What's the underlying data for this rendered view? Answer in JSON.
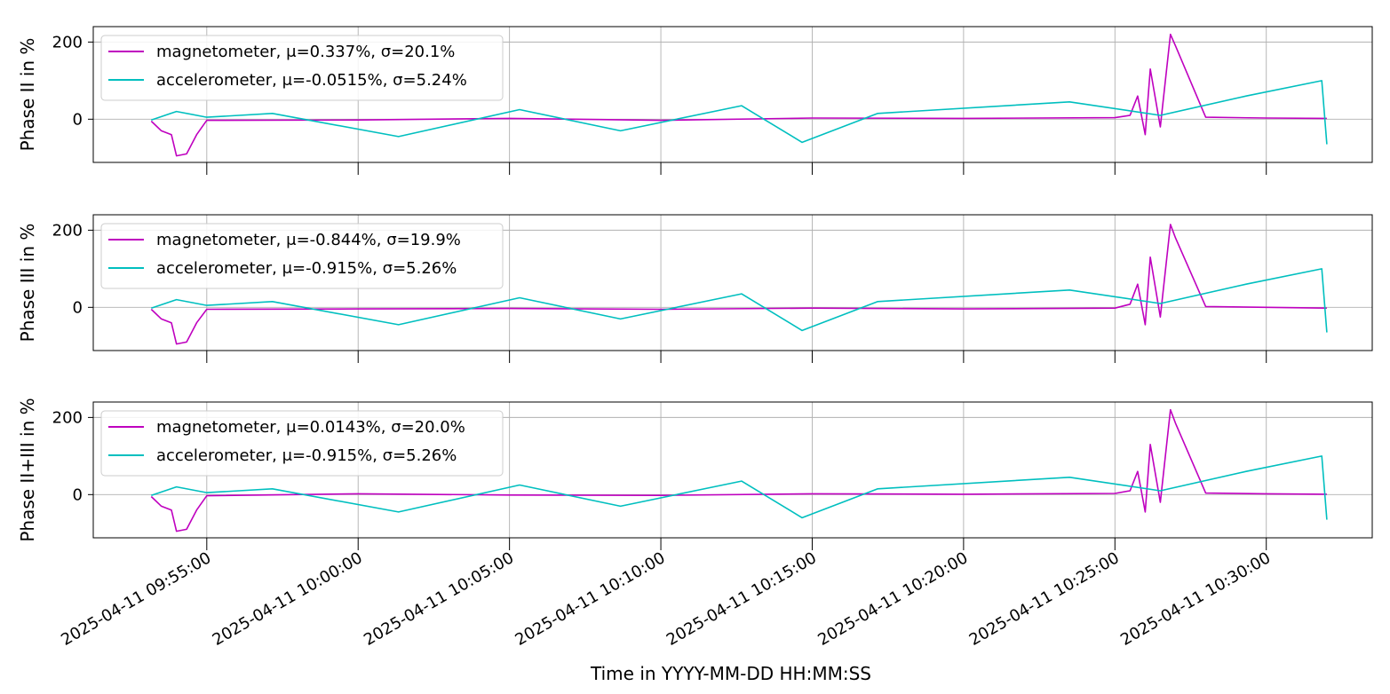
{
  "chart_data": {
    "type": "line",
    "xlabel": "Time in YYYY-MM-DD HH:MM:SS",
    "x_range": [
      "2025-04-11 09:51:15",
      "2025-04-11 10:33:30"
    ],
    "x_ticks": [
      "2025-04-11 09:55:00",
      "2025-04-11 10:00:00",
      "2025-04-11 10:05:00",
      "2025-04-11 10:10:00",
      "2025-04-11 10:15:00",
      "2025-04-11 10:20:00",
      "2025-04-11 10:25:00",
      "2025-04-11 10:30:00"
    ],
    "y_ticks": [
      0,
      200
    ],
    "grid": true,
    "legend_placement": "upper-left",
    "colors": {
      "magnetometer": "#bf00bf",
      "accelerometer": "#00bfbf"
    },
    "panels": [
      {
        "ylabel": "Phase II in %",
        "ylim": [
          -112,
          240
        ],
        "series": [
          {
            "name": "magnetometer",
            "legend": "magnetometer, μ=0.337%, σ=20.1%",
            "x": [
              "2025-04-11 09:53:10",
              "2025-04-11 09:53:30",
              "2025-04-11 09:53:50",
              "2025-04-11 09:54:00",
              "2025-04-11 09:54:20",
              "2025-04-11 09:54:40",
              "2025-04-11 09:55:00",
              "2025-04-11 10:00:00",
              "2025-04-11 10:05:00",
              "2025-04-11 10:10:00",
              "2025-04-11 10:15:00",
              "2025-04-11 10:20:00",
              "2025-04-11 10:25:00",
              "2025-04-11 10:25:30",
              "2025-04-11 10:25:45",
              "2025-04-11 10:26:00",
              "2025-04-11 10:26:10",
              "2025-04-11 10:26:30",
              "2025-04-11 10:26:50",
              "2025-04-11 10:27:00",
              "2025-04-11 10:28:00",
              "2025-04-11 10:30:00",
              "2025-04-11 10:32:00"
            ],
            "y": [
              -5,
              -30,
              -40,
              -95,
              -90,
              -40,
              -3,
              -2,
              2,
              -3,
              3,
              2,
              4,
              10,
              60,
              -40,
              130,
              -20,
              220,
              190,
              5,
              3,
              2
            ]
          },
          {
            "name": "accelerometer",
            "legend": "accelerometer, μ=-0.0515%, σ=5.24%",
            "x": [
              "2025-04-11 09:53:10",
              "2025-04-11 09:54:00",
              "2025-04-11 09:55:00",
              "2025-04-11 09:57:10",
              "2025-04-11 10:01:20",
              "2025-04-11 10:05:20",
              "2025-04-11 10:08:40",
              "2025-04-11 10:12:40",
              "2025-04-11 10:14:40",
              "2025-04-11 10:17:10",
              "2025-04-11 10:23:30",
              "2025-04-11 10:26:30",
              "2025-04-11 10:29:20",
              "2025-04-11 10:31:50",
              "2025-04-11 10:32:00"
            ],
            "y": [
              -2,
              20,
              5,
              15,
              -45,
              25,
              -30,
              35,
              -60,
              15,
              45,
              10,
              60,
              100,
              -65
            ]
          }
        ]
      },
      {
        "ylabel": "Phase III in %",
        "ylim": [
          -112,
          240
        ],
        "series": [
          {
            "name": "magnetometer",
            "legend": "magnetometer, μ=-0.844%, σ=19.9%",
            "x": [
              "2025-04-11 09:53:10",
              "2025-04-11 09:53:30",
              "2025-04-11 09:53:50",
              "2025-04-11 09:54:00",
              "2025-04-11 09:54:20",
              "2025-04-11 09:54:40",
              "2025-04-11 09:55:00",
              "2025-04-11 10:00:00",
              "2025-04-11 10:05:00",
              "2025-04-11 10:10:00",
              "2025-04-11 10:15:00",
              "2025-04-11 10:20:00",
              "2025-04-11 10:25:00",
              "2025-04-11 10:25:30",
              "2025-04-11 10:25:45",
              "2025-04-11 10:26:00",
              "2025-04-11 10:26:10",
              "2025-04-11 10:26:30",
              "2025-04-11 10:26:50",
              "2025-04-11 10:27:00",
              "2025-04-11 10:28:00",
              "2025-04-11 10:30:00",
              "2025-04-11 10:32:00"
            ],
            "y": [
              -5,
              -30,
              -40,
              -95,
              -90,
              -40,
              -5,
              -4,
              -3,
              -5,
              -2,
              -4,
              -2,
              8,
              60,
              -45,
              130,
              -25,
              215,
              180,
              2,
              0,
              -2
            ]
          },
          {
            "name": "accelerometer",
            "legend": "accelerometer, μ=-0.915%, σ=5.26%",
            "x": [
              "2025-04-11 09:53:10",
              "2025-04-11 09:54:00",
              "2025-04-11 09:55:00",
              "2025-04-11 09:57:10",
              "2025-04-11 10:01:20",
              "2025-04-11 10:05:20",
              "2025-04-11 10:08:40",
              "2025-04-11 10:12:40",
              "2025-04-11 10:14:40",
              "2025-04-11 10:17:10",
              "2025-04-11 10:23:30",
              "2025-04-11 10:26:30",
              "2025-04-11 10:29:20",
              "2025-04-11 10:31:50",
              "2025-04-11 10:32:00"
            ],
            "y": [
              -2,
              20,
              5,
              15,
              -45,
              25,
              -30,
              35,
              -60,
              15,
              45,
              10,
              60,
              100,
              -65
            ]
          }
        ]
      },
      {
        "ylabel": "Phase II+III in %",
        "ylim": [
          -112,
          240
        ],
        "series": [
          {
            "name": "magnetometer",
            "legend": "magnetometer, μ=0.0143%, σ=20.0%",
            "x": [
              "2025-04-11 09:53:10",
              "2025-04-11 09:53:30",
              "2025-04-11 09:53:50",
              "2025-04-11 09:54:00",
              "2025-04-11 09:54:20",
              "2025-04-11 09:54:40",
              "2025-04-11 09:55:00",
              "2025-04-11 10:00:00",
              "2025-04-11 10:05:00",
              "2025-04-11 10:10:00",
              "2025-04-11 10:15:00",
              "2025-04-11 10:20:00",
              "2025-04-11 10:25:00",
              "2025-04-11 10:25:30",
              "2025-04-11 10:25:45",
              "2025-04-11 10:26:00",
              "2025-04-11 10:26:10",
              "2025-04-11 10:26:30",
              "2025-04-11 10:26:50",
              "2025-04-11 10:27:00",
              "2025-04-11 10:28:00",
              "2025-04-11 10:30:00",
              "2025-04-11 10:32:00"
            ],
            "y": [
              -5,
              -30,
              -40,
              -95,
              -90,
              -40,
              -3,
              2,
              -1,
              -2,
              2,
              1,
              3,
              10,
              60,
              -45,
              130,
              -20,
              220,
              185,
              4,
              2,
              1
            ]
          },
          {
            "name": "accelerometer",
            "legend": "accelerometer, μ=-0.915%, σ=5.26%",
            "x": [
              "2025-04-11 09:53:10",
              "2025-04-11 09:54:00",
              "2025-04-11 09:55:00",
              "2025-04-11 09:57:10",
              "2025-04-11 10:01:20",
              "2025-04-11 10:05:20",
              "2025-04-11 10:08:40",
              "2025-04-11 10:12:40",
              "2025-04-11 10:14:40",
              "2025-04-11 10:17:10",
              "2025-04-11 10:23:30",
              "2025-04-11 10:26:30",
              "2025-04-11 10:29:20",
              "2025-04-11 10:31:50",
              "2025-04-11 10:32:00"
            ],
            "y": [
              -2,
              20,
              5,
              15,
              -45,
              25,
              -30,
              35,
              -60,
              15,
              45,
              10,
              60,
              100,
              -65
            ]
          }
        ]
      }
    ]
  }
}
